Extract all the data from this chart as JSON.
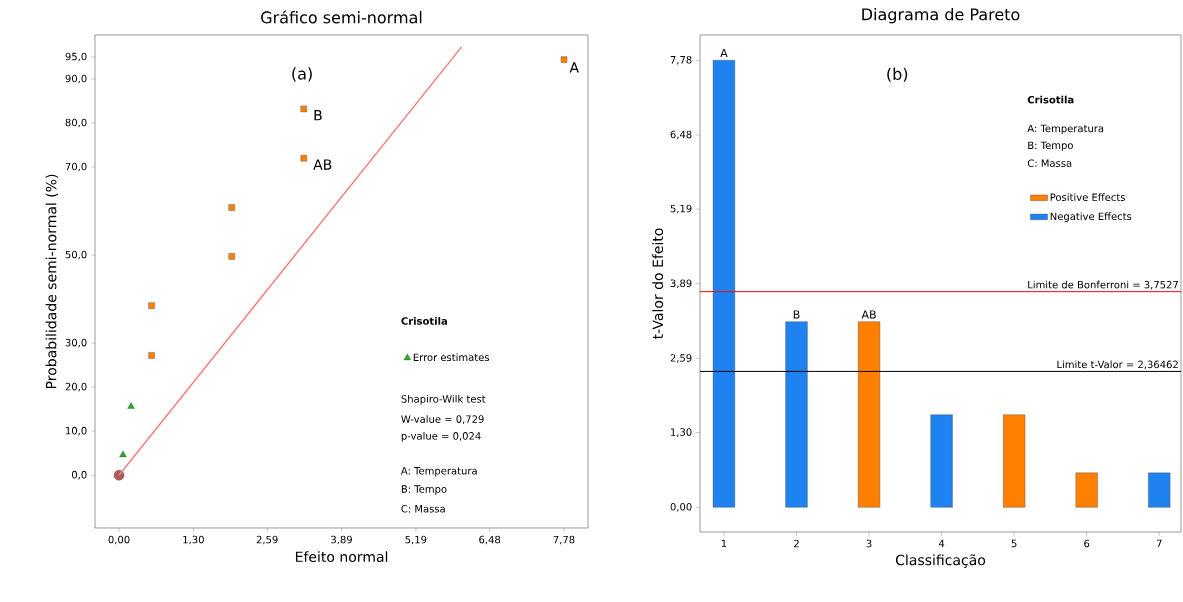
{
  "chart_data": [
    {
      "type": "scatter",
      "title": "Gráfico semi-normal",
      "xlabel": "Efeito normal",
      "ylabel": "Probabilidade semi-normal (%)",
      "xlim": [
        -0.42,
        8.2
      ],
      "ylim": [
        -12,
        100
      ],
      "xticks": [
        {
          "value": 0,
          "label": "0,00"
        },
        {
          "value": 1.3,
          "label": "1,30"
        },
        {
          "value": 2.59,
          "label": "2,59"
        },
        {
          "value": 3.89,
          "label": "3,89"
        },
        {
          "value": 5.19,
          "label": "5,19"
        },
        {
          "value": 6.48,
          "label": "6,48"
        },
        {
          "value": 7.78,
          "label": "7,78"
        }
      ],
      "yticks": [
        {
          "value": 0,
          "label": "0,0"
        },
        {
          "value": 10,
          "label": "10,0"
        },
        {
          "value": 20,
          "label": "20,0"
        },
        {
          "value": 30,
          "label": "30,0"
        },
        {
          "value": 50,
          "label": "50,0"
        },
        {
          "value": 70,
          "label": "70,0"
        },
        {
          "value": 80,
          "label": "80,0"
        },
        {
          "value": 90,
          "label": "90,0"
        },
        {
          "value": 95,
          "label": "95,0"
        }
      ],
      "legend": "right",
      "series": [
        {
          "color": "#b5565a",
          "marker": "circle",
          "x": [
            0
          ],
          "values": [
            0
          ]
        },
        {
          "name": "Error estimates",
          "color": "#22b022",
          "marker": "triangle",
          "x": [
            0.07,
            0.21
          ],
          "values": [
            4.6,
            15.6
          ]
        },
        {
          "color": "#ff8000",
          "marker": "square",
          "x": [
            0.57,
            0.57,
            1.97,
            1.97,
            3.23,
            3.23,
            7.78
          ],
          "values": [
            27.2,
            38.5,
            49.7,
            60.8,
            72.0,
            83.2,
            94.4
          ]
        },
        {
          "type": "line",
          "color": "#f08080",
          "marker": "none",
          "x": [
            0,
            5.99
          ],
          "values": [
            0,
            97.3
          ]
        }
      ],
      "annotations": [
        "(a)",
        "Crisotila",
        "Shapiro-Wilk test",
        "W-value = 0,729",
        "p-value = 0,024",
        "A: Temperatura",
        "B: Tempo",
        "C: Massa",
        "A",
        "B",
        "AB"
      ]
    },
    {
      "type": "bar",
      "title": "Diagrama de Pareto",
      "xlabel": "Classificação",
      "ylabel": "t-Valor do Efeito",
      "categories": [
        "1",
        "2",
        "3",
        "4",
        "5",
        "6",
        "7"
      ],
      "ylim": [
        -0.43,
        8.22
      ],
      "yticks": [
        {
          "value": 0,
          "label": "0,00"
        },
        {
          "value": 1.3,
          "label": "1,30"
        },
        {
          "value": 2.59,
          "label": "2,59"
        },
        {
          "value": 3.89,
          "label": "3,89"
        },
        {
          "value": 5.19,
          "label": "5,19"
        },
        {
          "value": 6.48,
          "label": "6,48"
        },
        {
          "value": 7.78,
          "label": "7,78"
        }
      ],
      "legend": "top right",
      "series": [
        {
          "name": "Positive Effects",
          "color": "#ff8000",
          "values": [
            null,
            null,
            3.23,
            null,
            1.61,
            0.6,
            null
          ]
        },
        {
          "name": "Negative Effects",
          "color": "#1e82f0",
          "values": [
            7.78,
            3.23,
            null,
            1.61,
            null,
            null,
            0.6
          ]
        }
      ],
      "ref_lines": [
        {
          "axis": "y",
          "value": 3.7527,
          "label": "Limite de Bonferroni = 3,7527",
          "color": "#ff0000"
        },
        {
          "axis": "y",
          "value": 2.36462,
          "label": "Limite t-Valor = 2,36462",
          "color": "#000000"
        }
      ],
      "annotations": [
        "(b)",
        "Crisotila",
        "A: Temperatura",
        "B: Tempo",
        "C: Massa",
        {
          "text": "A",
          "x": "1",
          "y": 7.78
        },
        {
          "text": "B",
          "x": "2",
          "y": 3.23
        },
        {
          "text": "AB",
          "x": "3",
          "y": 3.23
        }
      ]
    }
  ]
}
